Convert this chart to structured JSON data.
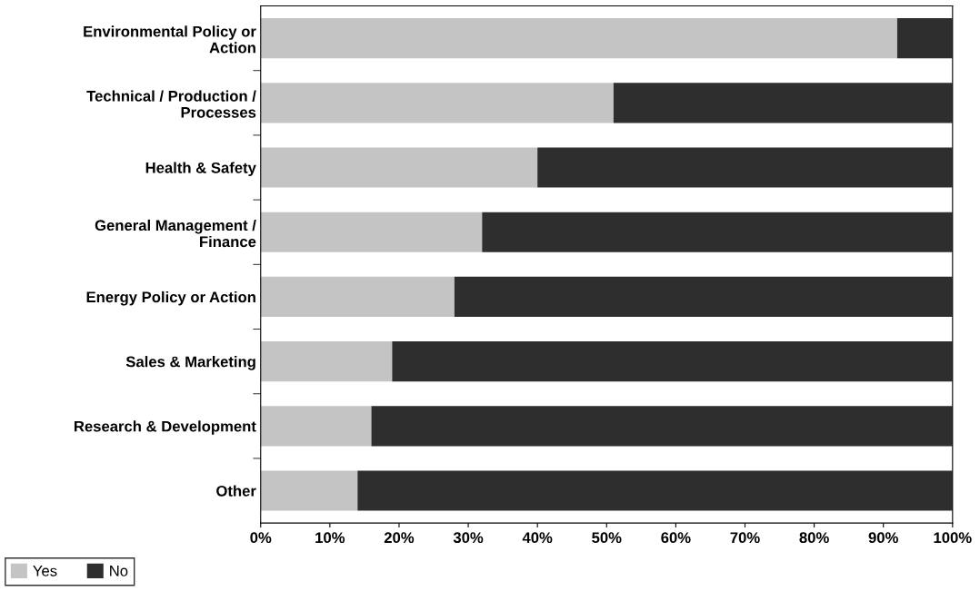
{
  "chart_data": {
    "type": "bar",
    "orientation": "horizontal",
    "stacked": true,
    "categories": [
      "Environmental Policy or\nAction",
      "Technical / Production /\nProcesses",
      "Health & Safety",
      "General Management /\nFinance",
      "Energy Policy or Action",
      "Sales & Marketing",
      "Research & Development",
      "Other"
    ],
    "series": [
      {
        "name": "Yes",
        "color": "#c4c4c4",
        "values": [
          92,
          51,
          40,
          32,
          28,
          19,
          16,
          14
        ]
      },
      {
        "name": "No",
        "color": "#2e2e2e",
        "values": [
          8,
          49,
          60,
          68,
          72,
          81,
          84,
          86
        ]
      }
    ],
    "xlim": [
      0,
      100
    ],
    "xticks": [
      {
        "value": 0,
        "label": "0%"
      },
      {
        "value": 10,
        "label": "10%"
      },
      {
        "value": 20,
        "label": "20%"
      },
      {
        "value": 30,
        "label": "30%"
      },
      {
        "value": 40,
        "label": "40%"
      },
      {
        "value": 50,
        "label": "50%"
      },
      {
        "value": 60,
        "label": "60%"
      },
      {
        "value": 70,
        "label": "70%"
      },
      {
        "value": 80,
        "label": "80%"
      },
      {
        "value": 90,
        "label": "90%"
      },
      {
        "value": 100,
        "label": "100%"
      }
    ],
    "legend": "bottom left",
    "grid": false
  }
}
